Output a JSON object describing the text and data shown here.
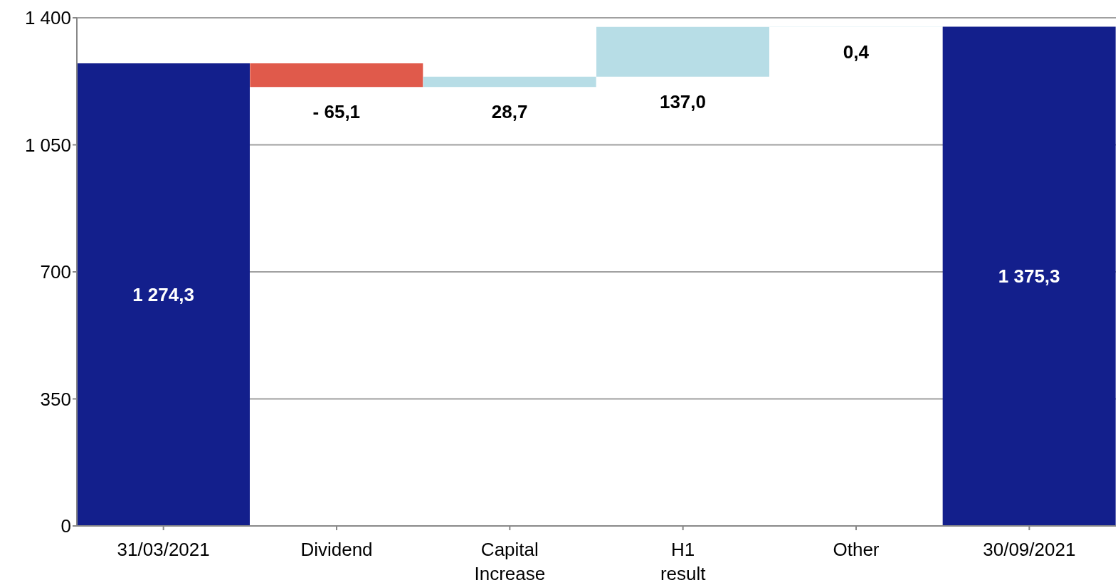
{
  "chart_data": {
    "type": "bar",
    "categories": [
      "31/03/2021",
      "Dividend",
      "Capital Increase",
      "H1 result",
      "Other",
      "30/09/2021"
    ],
    "values": [
      1274.3,
      -65.1,
      28.7,
      137.0,
      0.4,
      1375.3
    ],
    "base": [
      0,
      1274.3,
      1209.2,
      1237.9,
      1374.9,
      0
    ],
    "colors": [
      "#131f8c",
      "#e05a4b",
      "#b7dde6",
      "#b7dde6",
      "#b7dde6",
      "#131f8c"
    ],
    "value_labels": [
      "1 274,3",
      "- 65,1",
      "28,7",
      "137,0",
      "0,4",
      "1 375,3"
    ],
    "ylim": [
      0,
      1400
    ],
    "yticks": [
      {
        "value": 0,
        "label": "0"
      },
      {
        "value": 350,
        "label": "350"
      },
      {
        "value": 700,
        "label": "700"
      },
      {
        "value": 1050,
        "label": "1 050"
      },
      {
        "value": 1400,
        "label": "1 400"
      }
    ],
    "grid": "y"
  }
}
